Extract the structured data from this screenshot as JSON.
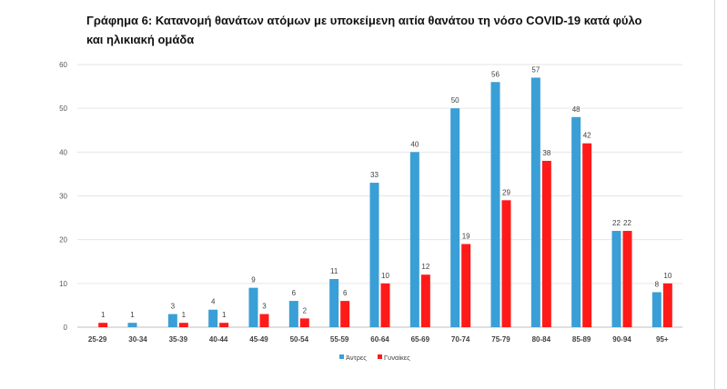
{
  "chart_data": {
    "type": "bar",
    "title": "Γράφημα 6: Κατανομή θανάτων ατόμων με υποκείμενη αιτία θανάτου τη νόσο COVID-19 κατά φύλο και ηλικιακή ομάδα",
    "categories": [
      "25-29",
      "30-34",
      "35-39",
      "40-44",
      "45-49",
      "50-54",
      "55-59",
      "60-64",
      "65-69",
      "70-74",
      "75-79",
      "80-84",
      "85-89",
      "90-94",
      "95+"
    ],
    "series": [
      {
        "name": "Άντρες",
        "color": "#3a9fd6",
        "values": [
          0,
          1,
          3,
          4,
          9,
          6,
          11,
          33,
          40,
          50,
          56,
          57,
          48,
          22,
          8
        ]
      },
      {
        "name": "Γυναίκες",
        "color": "#ff1a1a",
        "values": [
          1,
          0,
          1,
          1,
          3,
          2,
          6,
          10,
          12,
          19,
          29,
          38,
          42,
          22,
          10
        ]
      }
    ],
    "ylim": [
      0,
      60
    ],
    "yticks": [
      0,
      10,
      20,
      30,
      40,
      50,
      60
    ],
    "grid": true,
    "legend": "bottom",
    "xlabel": "",
    "ylabel": ""
  }
}
